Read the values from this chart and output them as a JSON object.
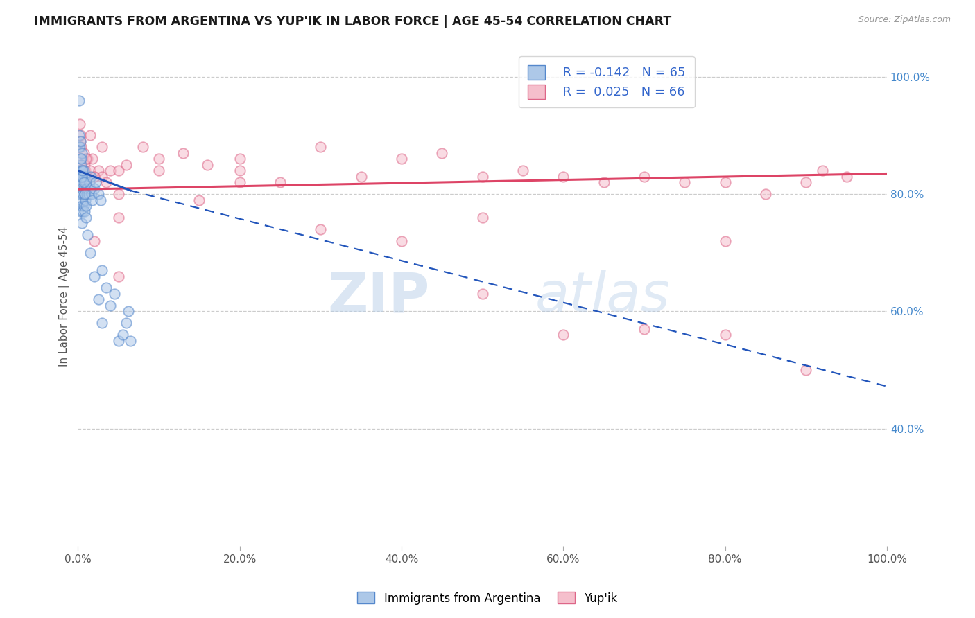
{
  "title": "IMMIGRANTS FROM ARGENTINA VS YUP'IK IN LABOR FORCE | AGE 45-54 CORRELATION CHART",
  "source": "Source: ZipAtlas.com",
  "ylabel": "In Labor Force | Age 45-54",
  "xlim": [
    0.0,
    1.0
  ],
  "ylim": [
    0.2,
    1.05
  ],
  "xticks": [
    0.0,
    0.2,
    0.4,
    0.6,
    0.8,
    1.0
  ],
  "yticks_right": [
    0.4,
    0.6,
    0.8,
    1.0
  ],
  "xticklabels": [
    "0.0%",
    "20.0%",
    "40.0%",
    "60.0%",
    "80.0%",
    "100.0%"
  ],
  "yticklabels_right": [
    "40.0%",
    "60.0%",
    "80.0%",
    "100.0%"
  ],
  "argentina_color": "#adc8e8",
  "yupik_color": "#f5bfcc",
  "argentina_edge": "#5588cc",
  "yupik_edge": "#dd6688",
  "trend_argentina_color": "#2255bb",
  "trend_yupik_color": "#dd4466",
  "legend_r_argentina": "-0.142",
  "legend_n_argentina": "65",
  "legend_r_yupik": "0.025",
  "legend_n_yupik": "66",
  "watermark_zip": "ZIP",
  "watermark_atlas": "atlas",
  "background_color": "#ffffff",
  "grid_color": "#cccccc",
  "marker_size": 110,
  "marker_alpha": 0.55,
  "argentina_x": [
    0.0005,
    0.001,
    0.001,
    0.0015,
    0.002,
    0.002,
    0.002,
    0.003,
    0.003,
    0.003,
    0.003,
    0.004,
    0.004,
    0.004,
    0.005,
    0.005,
    0.005,
    0.005,
    0.005,
    0.006,
    0.006,
    0.006,
    0.007,
    0.007,
    0.007,
    0.008,
    0.008,
    0.008,
    0.009,
    0.009,
    0.01,
    0.01,
    0.011,
    0.012,
    0.013,
    0.014,
    0.015,
    0.016,
    0.017,
    0.018,
    0.02,
    0.022,
    0.025,
    0.028,
    0.03,
    0.035,
    0.04,
    0.045,
    0.05,
    0.055,
    0.06,
    0.062,
    0.065,
    0.003,
    0.004,
    0.005,
    0.006,
    0.007,
    0.008,
    0.01,
    0.012,
    0.015,
    0.02,
    0.025,
    0.03
  ],
  "argentina_y": [
    0.84,
    0.96,
    0.9,
    0.88,
    0.88,
    0.84,
    0.8,
    0.86,
    0.83,
    0.8,
    0.77,
    0.85,
    0.82,
    0.79,
    0.87,
    0.84,
    0.81,
    0.78,
    0.75,
    0.83,
    0.8,
    0.77,
    0.84,
    0.81,
    0.78,
    0.83,
    0.8,
    0.77,
    0.82,
    0.79,
    0.81,
    0.78,
    0.8,
    0.81,
    0.8,
    0.82,
    0.81,
    0.83,
    0.8,
    0.79,
    0.81,
    0.82,
    0.8,
    0.79,
    0.67,
    0.64,
    0.61,
    0.63,
    0.55,
    0.56,
    0.58,
    0.6,
    0.55,
    0.89,
    0.86,
    0.83,
    0.84,
    0.82,
    0.8,
    0.76,
    0.73,
    0.7,
    0.66,
    0.62,
    0.58
  ],
  "yupik_x": [
    0.001,
    0.002,
    0.003,
    0.003,
    0.004,
    0.004,
    0.005,
    0.006,
    0.007,
    0.008,
    0.009,
    0.01,
    0.012,
    0.015,
    0.018,
    0.02,
    0.025,
    0.03,
    0.035,
    0.04,
    0.05,
    0.06,
    0.08,
    0.1,
    0.13,
    0.16,
    0.2,
    0.25,
    0.3,
    0.35,
    0.4,
    0.45,
    0.5,
    0.55,
    0.6,
    0.65,
    0.7,
    0.75,
    0.8,
    0.85,
    0.9,
    0.92,
    0.95,
    0.003,
    0.006,
    0.01,
    0.015,
    0.02,
    0.03,
    0.05,
    0.1,
    0.2,
    0.3,
    0.4,
    0.5,
    0.6,
    0.7,
    0.8,
    0.9,
    0.02,
    0.05,
    0.2,
    0.05,
    0.15,
    0.5,
    0.8
  ],
  "yupik_y": [
    0.88,
    0.92,
    0.89,
    0.85,
    0.88,
    0.84,
    0.84,
    0.86,
    0.87,
    0.85,
    0.84,
    0.82,
    0.86,
    0.84,
    0.86,
    0.83,
    0.84,
    0.83,
    0.82,
    0.84,
    0.84,
    0.85,
    0.88,
    0.86,
    0.87,
    0.85,
    0.84,
    0.82,
    0.88,
    0.83,
    0.86,
    0.87,
    0.83,
    0.84,
    0.83,
    0.82,
    0.83,
    0.82,
    0.82,
    0.8,
    0.82,
    0.84,
    0.83,
    0.9,
    0.83,
    0.86,
    0.9,
    0.83,
    0.88,
    0.8,
    0.84,
    0.86,
    0.74,
    0.72,
    0.76,
    0.56,
    0.57,
    0.56,
    0.5,
    0.72,
    0.76,
    0.82,
    0.66,
    0.79,
    0.63,
    0.72
  ],
  "arg_trend_x0": 0.0,
  "arg_trend_y0": 0.84,
  "arg_trend_x1": 0.065,
  "arg_trend_y1": 0.806,
  "arg_trend_x2": 1.0,
  "arg_trend_y2": 0.472,
  "yupik_trend_x0": 0.0,
  "yupik_trend_y0": 0.808,
  "yupik_trend_x1": 1.0,
  "yupik_trend_y1": 0.835
}
